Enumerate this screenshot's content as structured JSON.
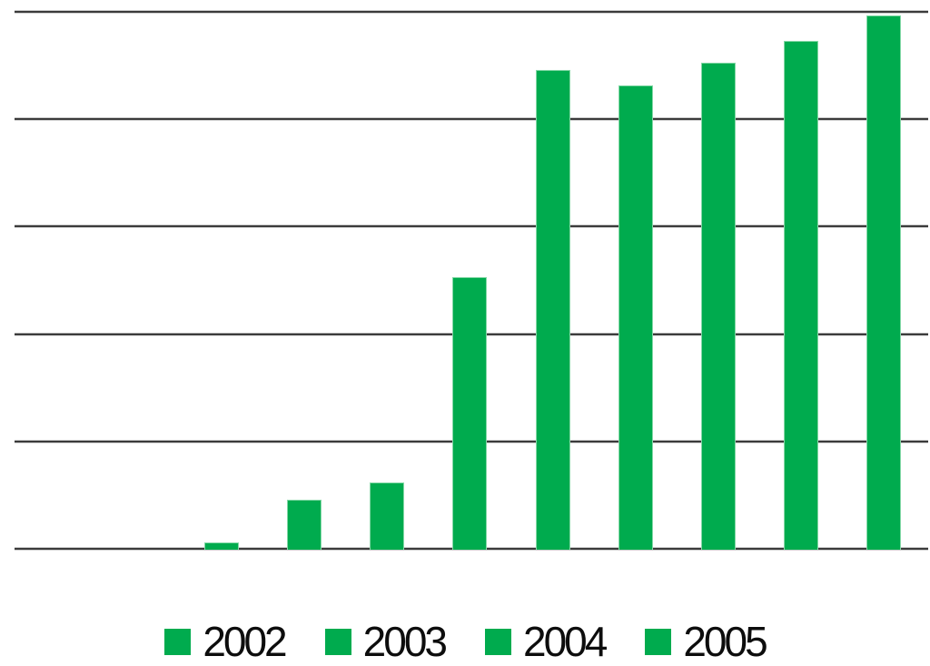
{
  "chart_data": {
    "type": "bar",
    "title": "",
    "xlabel": "",
    "ylabel": "",
    "x": [
      1,
      2,
      3,
      4,
      5,
      6,
      7,
      8,
      9
    ],
    "values": [
      0.05,
      0.45,
      0.61,
      2.52,
      4.45,
      4.31,
      4.52,
      4.72,
      4.96
    ],
    "ylim": [
      0,
      5
    ],
    "gridlines": {
      "orientation": "horizontal",
      "count": 6,
      "interval": 1
    },
    "axis_tick_labels_visible": false,
    "legend": {
      "position": "bottom",
      "entries": [
        "2002",
        "2003",
        "2004",
        "2005"
      ]
    },
    "colors": {
      "bar": "#00AB4E",
      "bar_edge": "#85D8A7",
      "gridline": "#3B3B3B",
      "legend_text": "#0D0D0D",
      "background": "#FFFFFF"
    }
  }
}
